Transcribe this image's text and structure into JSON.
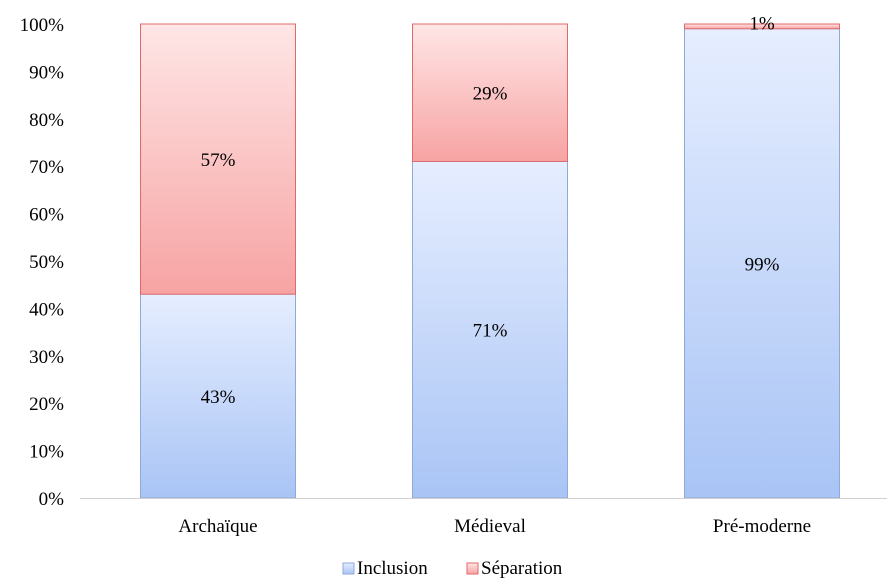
{
  "chart_data": {
    "type": "bar",
    "stacked": true,
    "categories": [
      "Archaïque",
      "Médieval",
      "Pré-moderne"
    ],
    "series": [
      {
        "name": "Inclusion",
        "values": [
          43,
          71,
          99
        ],
        "labels": [
          "43%",
          "71%",
          "99%"
        ],
        "color": "#a9c4f5",
        "color_light": "#e6eeff",
        "border": "#8fa9d8"
      },
      {
        "name": "Séparation",
        "values": [
          57,
          29,
          1
        ],
        "labels": [
          "57%",
          "29%",
          "1%"
        ],
        "color": "#f7a3a3",
        "color_light": "#ffe6e6",
        "border": "#e06a6a"
      }
    ],
    "title": "",
    "xlabel": "",
    "ylabel": "",
    "ylim": [
      0,
      100
    ],
    "yticks": [
      "0%",
      "10%",
      "20%",
      "30%",
      "40%",
      "50%",
      "60%",
      "70%",
      "80%",
      "90%",
      "100%"
    ],
    "grid": false,
    "legend": "bottom-center"
  }
}
